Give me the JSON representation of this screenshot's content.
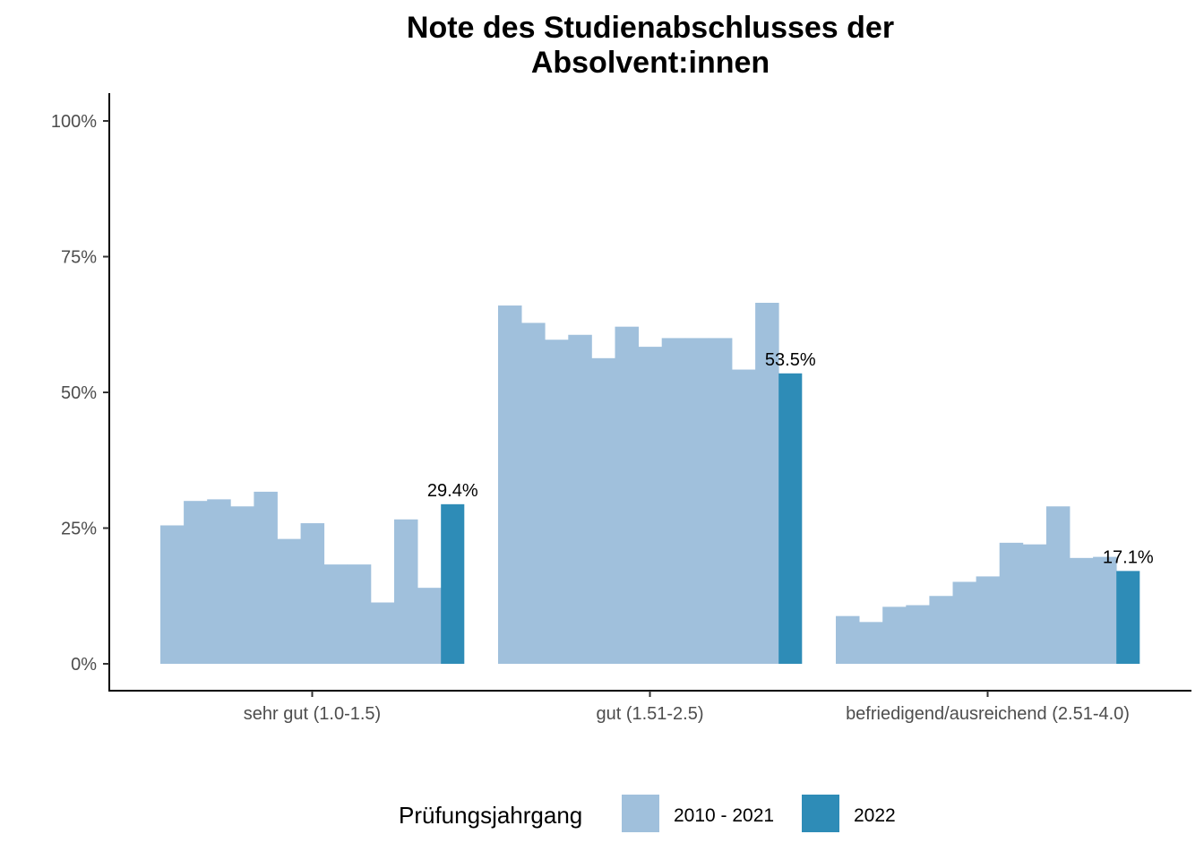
{
  "chart_data": {
    "type": "bar",
    "title": [
      "Note des Studienabschlusses der",
      "Absolvent:innen"
    ],
    "xlabel": "",
    "ylabel": "",
    "ylim": [
      0,
      100
    ],
    "yticks": [
      0,
      25,
      50,
      75,
      100
    ],
    "ytick_labels": [
      "0%",
      "25%",
      "50%",
      "75%",
      "100%"
    ],
    "categories": [
      "sehr gut (1.0-1.5)",
      "gut (1.51-2.5)",
      "befriedigend/ausreichend (2.51-4.0)"
    ],
    "series": [
      {
        "name": "2010 - 2021",
        "color": "#a0c0dc",
        "values": [
          [
            25.5,
            30.0,
            30.3,
            29.0,
            31.7,
            23.0,
            25.9,
            18.3,
            18.3,
            11.3,
            26.6,
            14.0
          ],
          [
            66.0,
            62.8,
            59.7,
            60.6,
            56.3,
            62.1,
            58.4,
            60.0,
            60.0,
            60.0,
            54.2,
            66.5
          ],
          [
            8.8,
            7.7,
            10.5,
            10.8,
            12.5,
            15.1,
            16.1,
            22.3,
            22.0,
            29.0,
            19.5,
            19.7
          ]
        ]
      },
      {
        "name": "2022",
        "color": "#2e8cb7",
        "values": [
          29.4,
          53.5,
          17.1
        ],
        "data_labels": [
          "29.4%",
          "53.5%",
          "17.1%"
        ]
      }
    ],
    "legend": {
      "title": "Prüfungsjahrgang",
      "position": "bottom",
      "items": [
        {
          "label": "2010 - 2021",
          "color": "#a0c0dc"
        },
        {
          "label": "2022",
          "color": "#2e8cb7"
        }
      ]
    },
    "grid": false
  }
}
